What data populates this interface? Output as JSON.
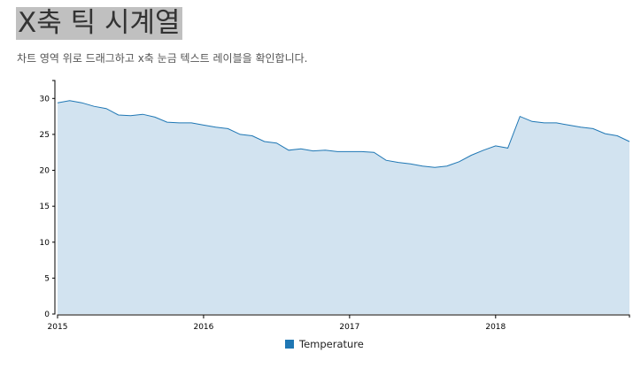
{
  "header": {
    "title": "X축 틱 시계열",
    "subtitle": "차트 영역 위로 드래그하고 x축 눈금 텍스트 레이블을 확인합니다."
  },
  "colors": {
    "area_fill": "#d2e3f0",
    "line": "#1f77b4",
    "legend_swatch": "#1f77b4"
  },
  "chart_data": {
    "type": "area",
    "title": "X축 틱 시계열",
    "series": [
      {
        "name": "Temperature",
        "x": [
          "2015-01",
          "2015-02",
          "2015-03",
          "2015-04",
          "2015-05",
          "2015-06",
          "2015-07",
          "2015-08",
          "2015-09",
          "2015-10",
          "2015-11",
          "2015-12",
          "2016-01",
          "2016-02",
          "2016-03",
          "2016-04",
          "2016-05",
          "2016-06",
          "2016-07",
          "2016-08",
          "2016-09",
          "2016-10",
          "2016-11",
          "2016-12",
          "2017-01",
          "2017-02",
          "2017-03",
          "2017-04",
          "2017-05",
          "2017-06",
          "2017-07",
          "2017-08",
          "2017-09",
          "2017-10",
          "2017-11",
          "2017-12",
          "2018-01",
          "2018-02",
          "2018-03",
          "2018-04",
          "2018-05",
          "2018-06",
          "2018-07",
          "2018-08",
          "2018-09",
          "2018-10",
          "2018-11",
          "2018-12"
        ],
        "values": [
          29.4,
          29.7,
          29.4,
          28.9,
          28.6,
          27.7,
          27.6,
          27.8,
          27.4,
          26.7,
          26.6,
          26.6,
          26.3,
          26.0,
          25.8,
          25.0,
          24.8,
          24.0,
          23.8,
          22.8,
          23.0,
          22.7,
          22.8,
          22.6,
          22.6,
          22.6,
          22.5,
          21.4,
          21.1,
          20.9,
          20.6,
          20.4,
          20.6,
          21.2,
          22.1,
          22.8,
          23.4,
          23.1,
          27.5,
          26.8,
          26.6,
          26.6,
          26.3,
          26.0,
          25.8,
          25.1,
          24.8,
          24.0
        ]
      }
    ],
    "xticks": [
      "2015",
      "2016",
      "2017",
      "2018"
    ],
    "yticks": [
      0,
      5,
      10,
      15,
      20,
      25,
      30
    ],
    "ylim": [
      0,
      32.5
    ],
    "grid": false,
    "legend": "bottom-center"
  }
}
